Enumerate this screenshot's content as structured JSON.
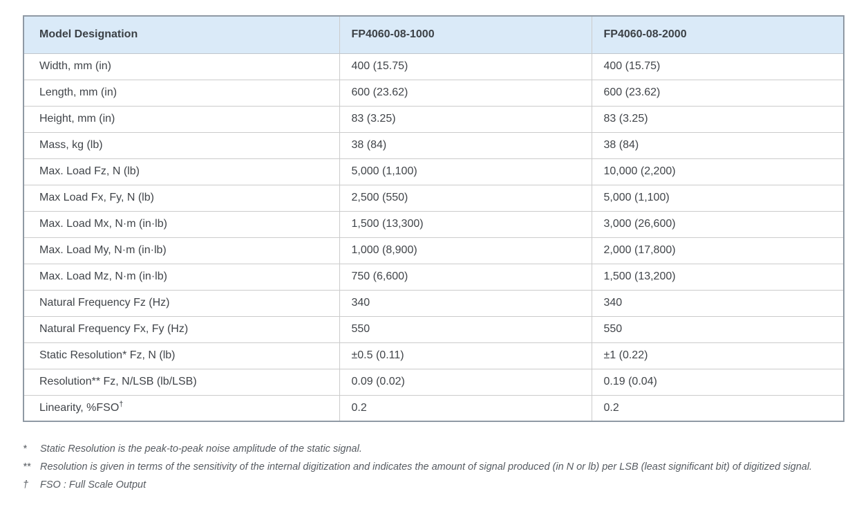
{
  "table": {
    "headers": [
      "Model Designation",
      "FP4060-08-1000",
      "FP4060-08-2000"
    ],
    "rows": [
      {
        "label": "Width, mm (in)",
        "model1": "400 (15.75)",
        "model2": "400 (15.75)"
      },
      {
        "label": "Length, mm (in)",
        "model1": "600 (23.62)",
        "model2": "600 (23.62)"
      },
      {
        "label": "Height, mm (in)",
        "model1": "83 (3.25)",
        "model2": "83 (3.25)"
      },
      {
        "label": "Mass, kg (lb)",
        "model1": "38 (84)",
        "model2": "38 (84)"
      },
      {
        "label": "Max. Load Fz, N (lb)",
        "model1": "5,000 (1,100)",
        "model2": "10,000 (2,200)"
      },
      {
        "label": "Max Load Fx, Fy, N (lb)",
        "model1": "2,500 (550)",
        "model2": "5,000 (1,100)"
      },
      {
        "label": "Max. Load Mx, N·m (in·lb)",
        "model1": "1,500 (13,300)",
        "model2": "3,000 (26,600)"
      },
      {
        "label": "Max. Load My, N·m (in·lb)",
        "model1": "1,000 (8,900)",
        "model2": "2,000 (17,800)"
      },
      {
        "label": "Max. Load Mz, N·m (in·lb)",
        "model1": "750 (6,600)",
        "model2": "1,500 (13,200)"
      },
      {
        "label": "Natural Frequency Fz (Hz)",
        "model1": "340",
        "model2": "340"
      },
      {
        "label": "Natural Frequency Fx, Fy (Hz)",
        "model1": "550",
        "model2": "550"
      },
      {
        "label": "Static Resolution* Fz, N (lb)",
        "model1": "±0.5 (0.11)",
        "model2": "±1 (0.22)"
      },
      {
        "label": "Resolution** Fz, N/LSB (lb/LSB)",
        "model1": "0.09 (0.02)",
        "model2": "0.19 (0.04)"
      },
      {
        "label": "Linearity, %FSO",
        "label_sup": "†",
        "model1": "0.2",
        "model2": "0.2"
      }
    ]
  },
  "footnotes": [
    {
      "marker": "*",
      "text": "Static Resolution is the peak-to-peak noise amplitude of the static signal."
    },
    {
      "marker": "**",
      "text": "Resolution is given in terms of the sensitivity of the internal digitization and indicates the amount of signal produced (in N or lb) per LSB (least significant bit) of digitized signal."
    },
    {
      "marker": "†",
      "text": "FSO : Full Scale Output"
    }
  ],
  "colors": {
    "header_background": "#daeaf8",
    "outer_border": "#8f99a4",
    "inner_border": "#cbcbcb",
    "body_text": "#404449",
    "header_text": "#3c4146",
    "footnote_text": "#565b61"
  }
}
